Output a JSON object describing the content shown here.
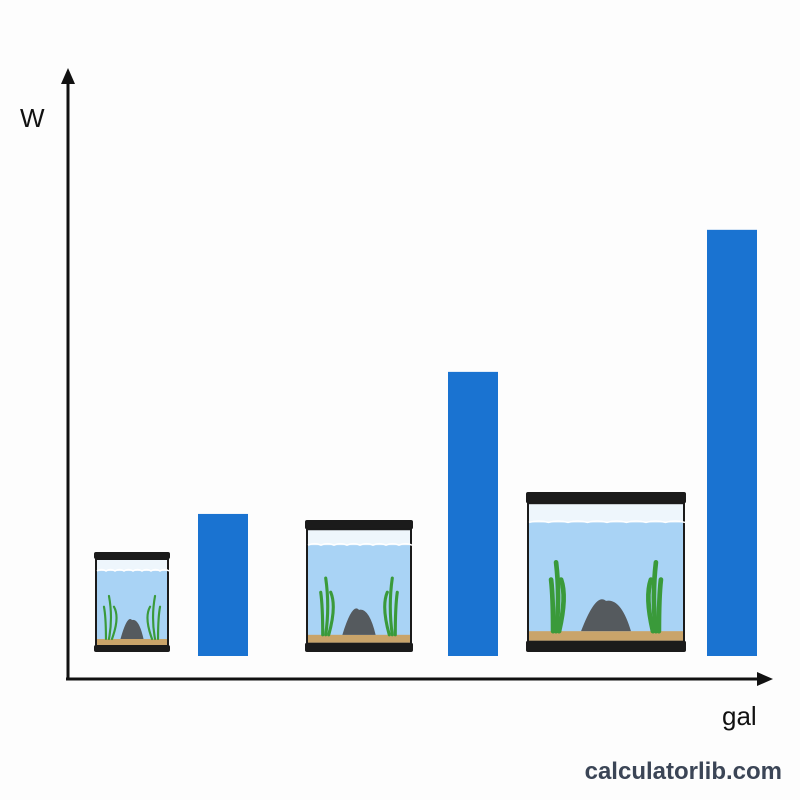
{
  "chart_data": {
    "type": "bar",
    "xlabel": "gal",
    "ylabel": "W",
    "categories": [
      "small tank",
      "medium tank",
      "large tank"
    ],
    "values": [
      1,
      2,
      3
    ],
    "ylim": [
      0,
      3.3
    ],
    "grid": false,
    "colors": {
      "bar": "#1a73d1",
      "axis": "#111111",
      "water": "#a9d3f5",
      "frame": "#1b1b1b",
      "plant": "#3a9a3a",
      "rock": "#555a5e",
      "gravel": "#c9a46a"
    },
    "icons": [
      "aquarium-small-icon",
      "aquarium-medium-icon",
      "aquarium-large-icon"
    ]
  },
  "watermark": "calculatorlib.com"
}
